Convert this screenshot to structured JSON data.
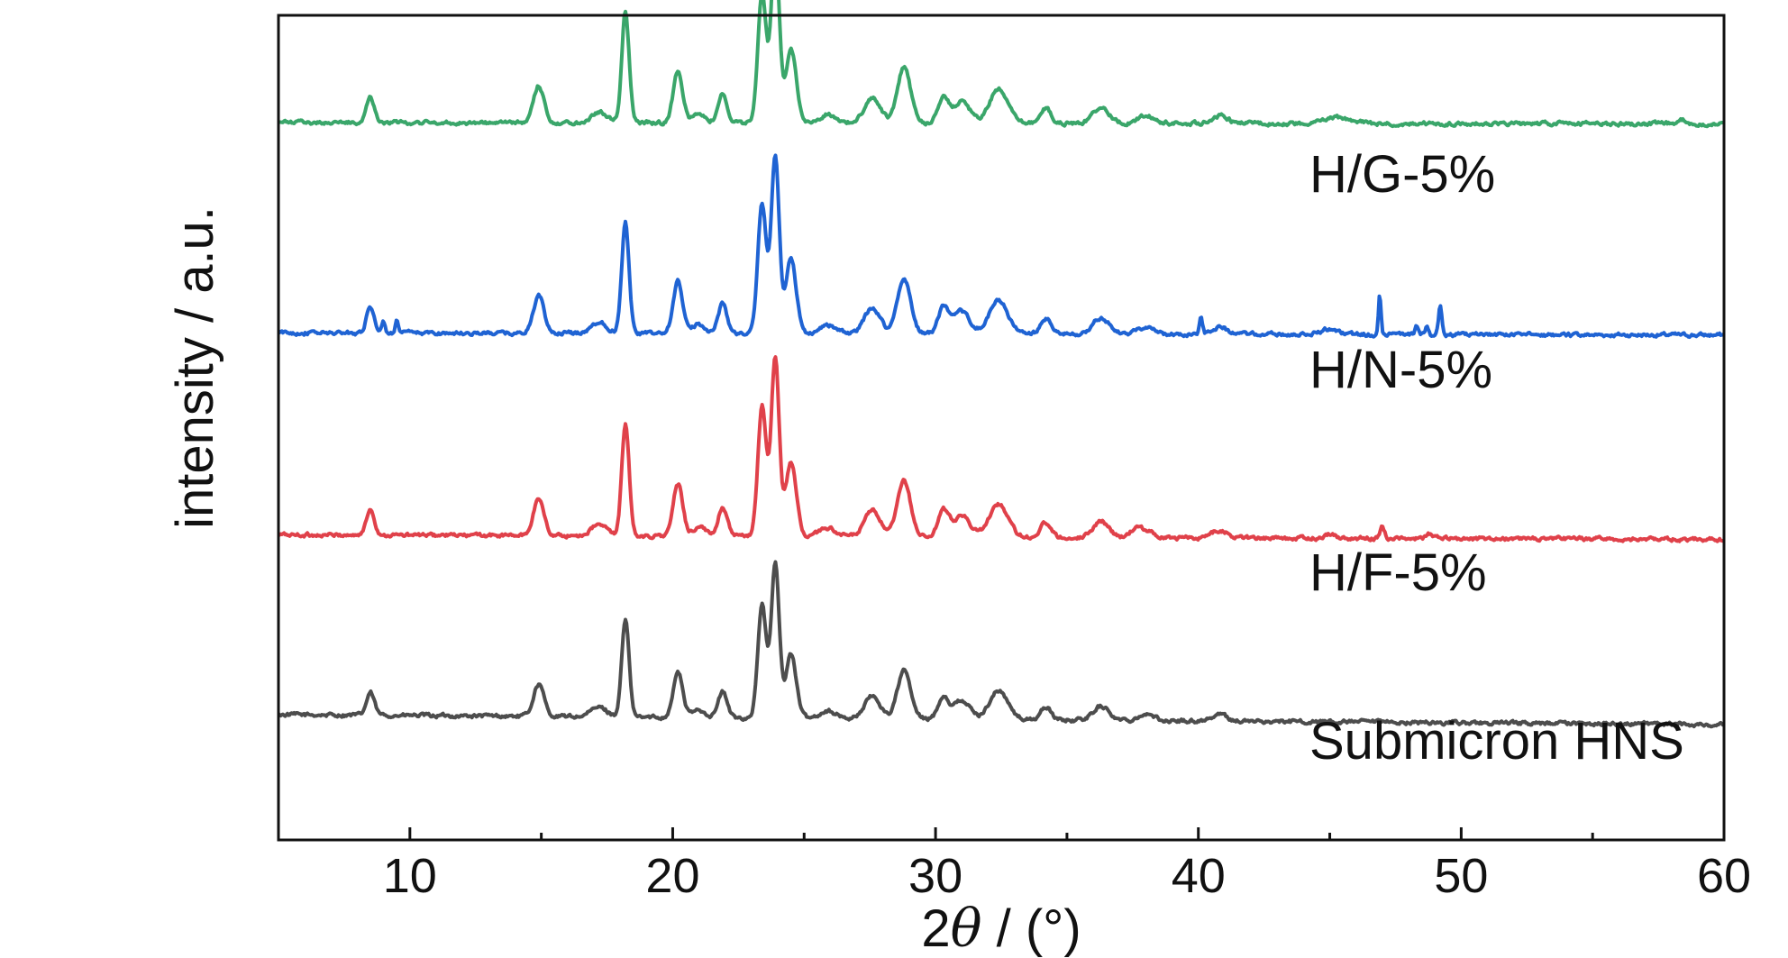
{
  "chart_data": {
    "type": "line",
    "xlabel_prefix": "2",
    "xlabel_symbol": "θ",
    "xlabel_suffix": " / (°)",
    "ylabel": "intensity / a.u.",
    "xlim": [
      5,
      60
    ],
    "ylim": [
      0,
      10
    ],
    "xticks": [
      10,
      20,
      30,
      40,
      50,
      60
    ],
    "xtick_labels": [
      "10",
      "20",
      "30",
      "40",
      "50",
      "60"
    ],
    "grid": false,
    "peaks_common": [
      [
        8.5,
        0.35,
        0.15
      ],
      [
        14.9,
        0.5,
        0.2
      ],
      [
        17.2,
        0.15,
        0.3
      ],
      [
        18.2,
        1.5,
        0.14
      ],
      [
        20.2,
        0.7,
        0.18
      ],
      [
        21.0,
        0.12,
        0.25
      ],
      [
        21.9,
        0.4,
        0.17
      ],
      [
        23.4,
        1.75,
        0.16
      ],
      [
        23.9,
        2.4,
        0.15
      ],
      [
        24.5,
        1.0,
        0.2
      ],
      [
        25.9,
        0.12,
        0.3
      ],
      [
        27.6,
        0.35,
        0.3
      ],
      [
        28.8,
        0.75,
        0.25
      ],
      [
        30.3,
        0.35,
        0.2
      ],
      [
        31.0,
        0.3,
        0.3
      ],
      [
        32.4,
        0.45,
        0.35
      ],
      [
        34.2,
        0.2,
        0.2
      ],
      [
        36.3,
        0.22,
        0.3
      ],
      [
        38.0,
        0.1,
        0.3
      ],
      [
        40.8,
        0.1,
        0.3
      ]
    ],
    "series": [
      {
        "name": "Submicron HNS",
        "color": "#4d4d4d",
        "baseline": 1.52,
        "slope": -0.0022,
        "scale": 0.78,
        "extra_peaks": []
      },
      {
        "name": "H/F-5%",
        "color": "#e0414a",
        "baseline": 3.7,
        "slope": -0.001,
        "scale": 0.9,
        "extra_peaks": [
          [
            37.6,
            0.08,
            0.2
          ],
          [
            47.0,
            0.15,
            0.08
          ],
          [
            45.0,
            0.05,
            0.2
          ],
          [
            48.8,
            0.05,
            0.15
          ]
        ]
      },
      {
        "name": "H/N-5%",
        "color": "#1f63d3",
        "baseline": 6.15,
        "slope": -0.0005,
        "scale": 0.9,
        "extra_peaks": [
          [
            9.0,
            0.12,
            0.06
          ],
          [
            9.5,
            0.15,
            0.05
          ],
          [
            40.1,
            0.2,
            0.06
          ],
          [
            46.9,
            0.5,
            0.05
          ],
          [
            48.3,
            0.12,
            0.06
          ],
          [
            48.7,
            0.12,
            0.06
          ],
          [
            49.2,
            0.35,
            0.06
          ],
          [
            44.9,
            0.06,
            0.3
          ]
        ]
      },
      {
        "name": "H/G-5%",
        "color": "#3aa66a",
        "baseline": 8.7,
        "slope": -0.0003,
        "scale": 0.9,
        "extra_peaks": [
          [
            45.3,
            0.07,
            0.5
          ],
          [
            58.4,
            0.05,
            0.08
          ]
        ]
      }
    ]
  }
}
